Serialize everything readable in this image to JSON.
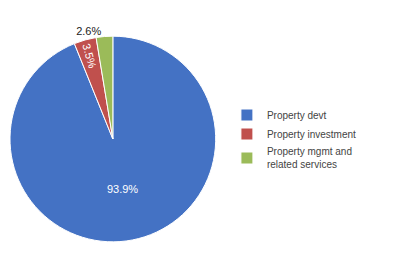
{
  "chart_data": {
    "type": "pie",
    "categories": [
      "Property devt",
      "Property investment",
      "Property mgmt and\nrelated services"
    ],
    "values": [
      93.9,
      3.5,
      2.6
    ],
    "value_labels": [
      "93.9%",
      "3.5%",
      "2.6%"
    ],
    "colors": [
      "#4472C4",
      "#C0504D",
      "#9BBB59"
    ],
    "data_labels": true,
    "legend": "right"
  }
}
